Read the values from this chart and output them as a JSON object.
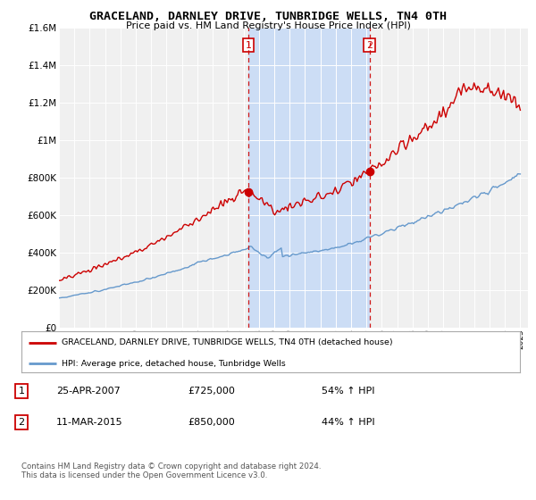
{
  "title": "GRACELAND, DARNLEY DRIVE, TUNBRIDGE WELLS, TN4 0TH",
  "subtitle": "Price paid vs. HM Land Registry's House Price Index (HPI)",
  "legend_line1": "GRACELAND, DARNLEY DRIVE, TUNBRIDGE WELLS, TN4 0TH (detached house)",
  "legend_line2": "HPI: Average price, detached house, Tunbridge Wells",
  "annotation1_label": "1",
  "annotation1_date": "25-APR-2007",
  "annotation1_price": "£725,000",
  "annotation1_hpi": "54% ↑ HPI",
  "annotation2_label": "2",
  "annotation2_date": "11-MAR-2015",
  "annotation2_price": "£850,000",
  "annotation2_hpi": "44% ↑ HPI",
  "footer": "Contains HM Land Registry data © Crown copyright and database right 2024.\nThis data is licensed under the Open Government Licence v3.0.",
  "hpi_color": "#6699cc",
  "price_color": "#cc0000",
  "plot_bg_color": "#f0f0f0",
  "shade_color": "#ccddf5",
  "ylim": [
    0,
    1600000
  ],
  "yticks": [
    0,
    200000,
    400000,
    600000,
    800000,
    1000000,
    1200000,
    1400000,
    1600000
  ],
  "ytick_labels": [
    "£0",
    "£200K",
    "£400K",
    "£600K",
    "£800K",
    "£1M",
    "£1.2M",
    "£1.4M",
    "£1.6M"
  ],
  "year_start": 1995,
  "year_end": 2025,
  "sale1_year": 2007.32,
  "sale1_price": 725000,
  "sale2_year": 2015.19,
  "sale2_price": 850000,
  "vline1_year": 2007.32,
  "vline2_year": 2015.19
}
